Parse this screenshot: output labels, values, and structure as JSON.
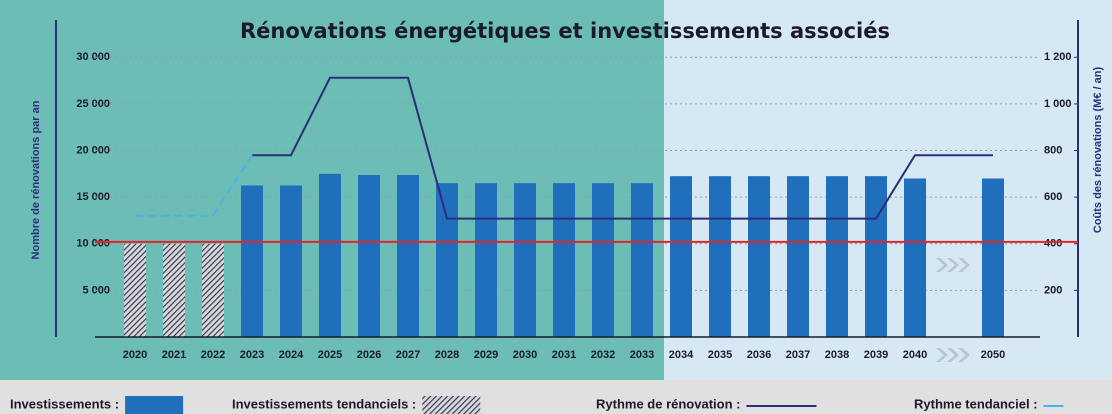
{
  "chart_data": {
    "type": "bar-line",
    "title": "Rénovations énergétiques et investissements associés",
    "ylabel": "Nombre de rénovations par an",
    "y2label": "Coûts des rénovations (M€ / an)",
    "categories": [
      "2020",
      "2021",
      "2022",
      "2023",
      "2024",
      "2025",
      "2026",
      "2027",
      "2028",
      "2029",
      "2030",
      "2031",
      "2032",
      "2033",
      "2034",
      "2035",
      "2036",
      "2037",
      "2038",
      "2039",
      "2040",
      null,
      "2050"
    ],
    "ylim": [
      0,
      34000
    ],
    "yticks": [
      {
        "value": 5000,
        "label": "5 000"
      },
      {
        "value": 10000,
        "label": "10 000"
      },
      {
        "value": 15000,
        "label": "15 000"
      },
      {
        "value": 20000,
        "label": "20 000"
      },
      {
        "value": 25000,
        "label": "25 000"
      },
      {
        "value": 30000,
        "label": "30 000"
      }
    ],
    "y2lim": [
      0,
      1360
    ],
    "y2ticks": [
      200,
      400,
      600,
      800,
      {
        "value": 1000,
        "label": "1 000"
      },
      {
        "value": 1200,
        "label": "1 200"
      }
    ],
    "grid": true,
    "reference_line": {
      "value": 10200,
      "color": "#e3262b"
    },
    "series": [
      {
        "name": "Investissements :",
        "kind": "bar",
        "color": "#1f6fbd",
        "axis": "y2",
        "values": [
          null,
          null,
          null,
          650,
          650,
          700,
          695,
          695,
          660,
          660,
          660,
          660,
          660,
          660,
          690,
          690,
          690,
          690,
          690,
          690,
          680,
          null,
          680
        ]
      },
      {
        "name": "Investissements tendanciels :",
        "kind": "bar",
        "pattern": "hatch",
        "color": "#4a4a5a",
        "axis": "y2",
        "values": [
          400,
          400,
          400,
          null,
          null,
          null,
          null,
          null,
          null,
          null,
          null,
          null,
          null,
          null,
          null,
          null,
          null,
          null,
          null,
          null,
          null,
          null,
          null
        ]
      },
      {
        "name": "Rythme de rénovation :",
        "kind": "line",
        "color": "#2b2f7a",
        "values": [
          null,
          null,
          null,
          19500,
          19500,
          27800,
          27800,
          27800,
          12700,
          12700,
          12700,
          12700,
          12700,
          12700,
          12700,
          12700,
          12700,
          12700,
          12700,
          12700,
          19500,
          19500,
          19500
        ]
      },
      {
        "name": "Rythme tendanciel :",
        "kind": "line",
        "dashed": true,
        "color": "#4db3e6",
        "values": [
          13000,
          13000,
          13000,
          19500,
          null,
          null,
          null,
          null,
          null,
          null,
          null,
          null,
          null,
          null,
          null,
          null,
          null,
          null,
          null,
          null,
          null,
          null,
          null
        ]
      }
    ]
  }
}
